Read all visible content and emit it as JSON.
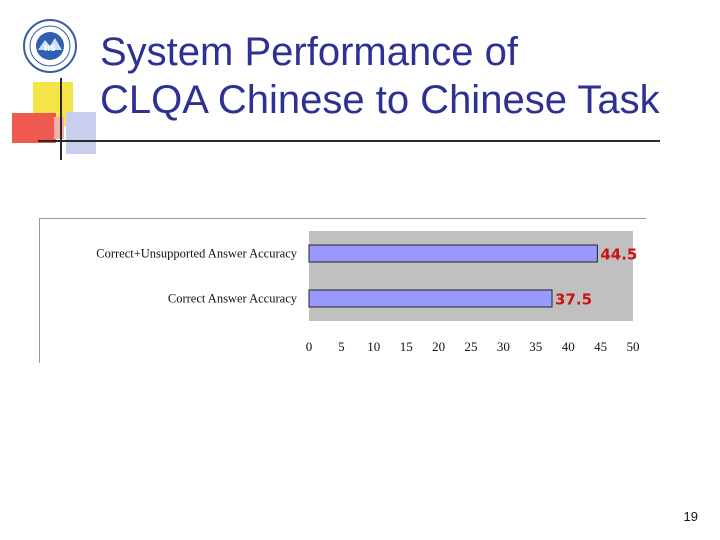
{
  "slide": {
    "title_line1": "System Performance of",
    "title_line2": "CLQA Chinese to Chinese Task",
    "page_number": "19"
  },
  "colors": {
    "title": "#2e3192",
    "bar_fill": "#9999ff",
    "plot_bg": "#c0c0c0",
    "value_label": "#cc1111"
  },
  "chart_data": {
    "type": "bar",
    "orientation": "horizontal",
    "categories": [
      "Correct+Unsupported Answer Accuracy",
      "Correct Answer Accuracy"
    ],
    "values": [
      44.5,
      37.5
    ],
    "value_labels": [
      "44.5",
      "37.5"
    ],
    "xlim": [
      0,
      50
    ],
    "xticks": [
      "0",
      "5",
      "10",
      "15",
      "20",
      "25",
      "30",
      "35",
      "40",
      "45",
      "50"
    ],
    "title": "",
    "xlabel": "",
    "ylabel": "",
    "legend": "none",
    "grid": false
  }
}
